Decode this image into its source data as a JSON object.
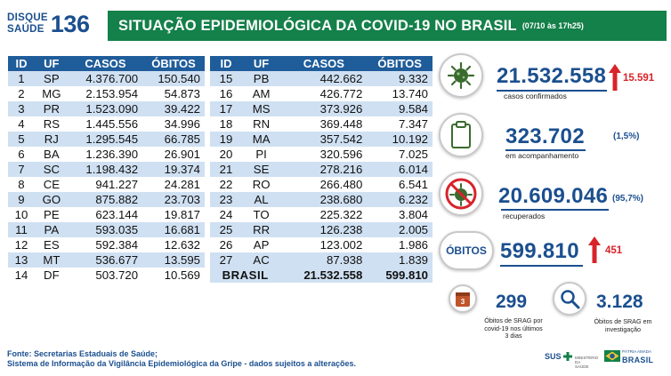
{
  "header": {
    "logo_line1": "DISQUE",
    "logo_line2": "SAÚDE",
    "logo_number": "136",
    "title": "SITUAÇÃO EPIDEMIOLÓGICA DA COVID-19 NO BRASIL",
    "date": "(07/10 às 17h25)"
  },
  "table": {
    "columns": [
      "ID",
      "UF",
      "CASOS",
      "ÓBITOS"
    ],
    "left_rows": [
      {
        "id": "1",
        "uf": "SP",
        "casos": "4.376.700",
        "obitos": "150.540"
      },
      {
        "id": "2",
        "uf": "MG",
        "casos": "2.153.954",
        "obitos": "54.873"
      },
      {
        "id": "3",
        "uf": "PR",
        "casos": "1.523.090",
        "obitos": "39.422"
      },
      {
        "id": "4",
        "uf": "RS",
        "casos": "1.445.556",
        "obitos": "34.996"
      },
      {
        "id": "5",
        "uf": "RJ",
        "casos": "1.295.545",
        "obitos": "66.785"
      },
      {
        "id": "6",
        "uf": "BA",
        "casos": "1.236.390",
        "obitos": "26.901"
      },
      {
        "id": "7",
        "uf": "SC",
        "casos": "1.198.432",
        "obitos": "19.374"
      },
      {
        "id": "8",
        "uf": "CE",
        "casos": "941.227",
        "obitos": "24.281"
      },
      {
        "id": "9",
        "uf": "GO",
        "casos": "875.882",
        "obitos": "23.703"
      },
      {
        "id": "10",
        "uf": "PE",
        "casos": "623.144",
        "obitos": "19.817"
      },
      {
        "id": "11",
        "uf": "PA",
        "casos": "593.035",
        "obitos": "16.681"
      },
      {
        "id": "12",
        "uf": "ES",
        "casos": "592.384",
        "obitos": "12.632"
      },
      {
        "id": "13",
        "uf": "MT",
        "casos": "536.677",
        "obitos": "13.595"
      },
      {
        "id": "14",
        "uf": "DF",
        "casos": "503.720",
        "obitos": "10.569"
      }
    ],
    "right_rows": [
      {
        "id": "15",
        "uf": "PB",
        "casos": "442.662",
        "obitos": "9.332"
      },
      {
        "id": "16",
        "uf": "AM",
        "casos": "426.772",
        "obitos": "13.740"
      },
      {
        "id": "17",
        "uf": "MS",
        "casos": "373.926",
        "obitos": "9.584"
      },
      {
        "id": "18",
        "uf": "RN",
        "casos": "369.448",
        "obitos": "7.347"
      },
      {
        "id": "19",
        "uf": "MA",
        "casos": "357.542",
        "obitos": "10.192"
      },
      {
        "id": "20",
        "uf": "PI",
        "casos": "320.596",
        "obitos": "7.025"
      },
      {
        "id": "21",
        "uf": "SE",
        "casos": "278.216",
        "obitos": "6.014"
      },
      {
        "id": "22",
        "uf": "RO",
        "casos": "266.480",
        "obitos": "6.541"
      },
      {
        "id": "23",
        "uf": "AL",
        "casos": "238.680",
        "obitos": "6.232"
      },
      {
        "id": "24",
        "uf": "TO",
        "casos": "225.322",
        "obitos": "3.804"
      },
      {
        "id": "25",
        "uf": "RR",
        "casos": "126.238",
        "obitos": "2.005"
      },
      {
        "id": "26",
        "uf": "AP",
        "casos": "123.002",
        "obitos": "1.986"
      },
      {
        "id": "27",
        "uf": "AC",
        "casos": "87.938",
        "obitos": "1.839"
      }
    ],
    "total": {
      "label": "BRASIL",
      "casos": "21.532.558",
      "obitos": "599.810"
    }
  },
  "stats": {
    "confirmed": {
      "value": "21.532.558",
      "delta": "15.591",
      "label": "casos confirmados",
      "icon": "virus-icon"
    },
    "monitoring": {
      "value": "323.702",
      "pct": "(1,5%)",
      "label": "em acompanhamento",
      "icon": "clipboard-icon"
    },
    "recovered": {
      "value": "20.609.046",
      "pct": "(95,7%)",
      "label": "recuperados",
      "icon": "no-virus-icon"
    },
    "deaths": {
      "badge": "ÓBITOS",
      "value": "599.810",
      "delta": "451"
    },
    "srag_recent": {
      "value": "299",
      "label_1": "Óbitos de SRAG por",
      "label_2": "covid-19 nos últimos",
      "label_3": "3 dias"
    },
    "srag_investigation": {
      "value": "3.128",
      "label_1": "Óbitos de SRAG em",
      "label_2": "investigação"
    }
  },
  "colors": {
    "title_bg": "#14804a",
    "header_blue": "#1f5c9a",
    "stripe": "#cfe0f2",
    "accent_red": "#d8232a",
    "text_blue": "#1b4f8f"
  },
  "footer": {
    "line1": "Fonte: Secretarias Estaduais de Saúde;",
    "line2": "Sistema de Informação da Vigilância Epidemiológica da Gripe - dados sujeitos a alterações.",
    "sus": "SUS",
    "ministry_1": "MINISTÉRIO DA",
    "ministry_2": "SAÚDE",
    "gov_line": "PÁTRIA AMADA",
    "gov_name": "BRASIL"
  }
}
